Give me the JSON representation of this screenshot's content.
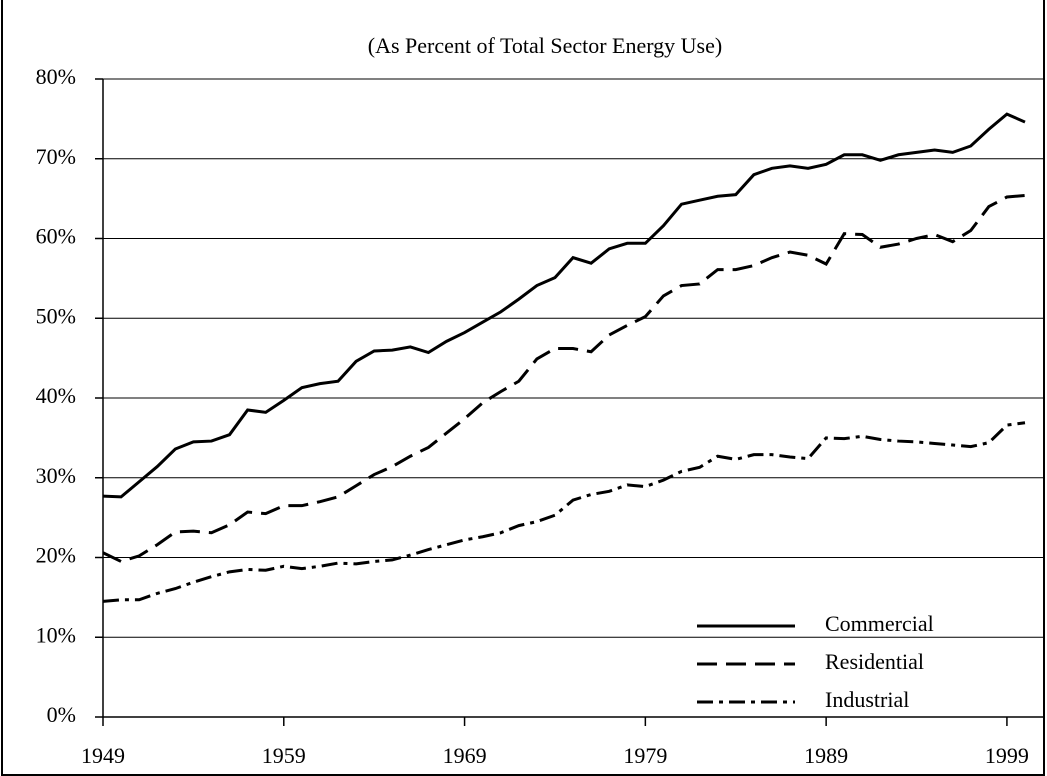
{
  "chart_data": {
    "type": "line",
    "subtitle": "(As Percent of Total Sector Energy Use)",
    "x": [
      1949,
      1950,
      1951,
      1952,
      1953,
      1954,
      1955,
      1956,
      1957,
      1958,
      1959,
      1960,
      1961,
      1962,
      1963,
      1964,
      1965,
      1966,
      1967,
      1968,
      1969,
      1970,
      1971,
      1972,
      1973,
      1974,
      1975,
      1976,
      1977,
      1978,
      1979,
      1980,
      1981,
      1982,
      1983,
      1984,
      1985,
      1986,
      1987,
      1988,
      1989,
      1990,
      1991,
      1992,
      1993,
      1994,
      1995,
      1996,
      1997,
      1998,
      1999,
      2000
    ],
    "series": [
      {
        "name": "Commercial",
        "color": "#000000",
        "dash": "solid",
        "values": [
          27.7,
          27.6,
          29.5,
          31.4,
          33.6,
          34.5,
          34.6,
          35.4,
          38.5,
          38.2,
          39.7,
          41.3,
          41.8,
          42.1,
          44.6,
          45.9,
          46.0,
          46.4,
          45.7,
          47.1,
          48.2,
          49.5,
          50.8,
          52.4,
          54.1,
          55.1,
          57.6,
          56.9,
          58.7,
          59.4,
          59.4,
          61.6,
          64.3,
          64.8,
          65.3,
          65.5,
          68.0,
          68.8,
          69.1,
          68.8,
          69.3,
          70.5,
          70.5,
          69.8,
          70.5,
          70.8,
          71.1,
          70.8,
          71.6,
          73.7,
          75.6,
          74.6
        ]
      },
      {
        "name": "Residential",
        "color": "#000000",
        "dash": "dashed",
        "values": [
          20.6,
          19.5,
          20.2,
          21.6,
          23.2,
          23.3,
          23.1,
          24.1,
          25.7,
          25.5,
          26.5,
          26.5,
          27.0,
          27.6,
          29.0,
          30.4,
          31.4,
          32.7,
          33.8,
          35.6,
          37.4,
          39.4,
          40.8,
          42.1,
          44.9,
          46.2,
          46.2,
          45.8,
          47.9,
          49.1,
          50.2,
          52.8,
          54.1,
          54.3,
          56.1,
          56.1,
          56.6,
          57.6,
          58.3,
          57.9,
          56.8,
          60.6,
          60.5,
          58.9,
          59.3,
          60.0,
          60.5,
          59.6,
          61.0,
          64.0,
          65.2,
          65.4
        ]
      },
      {
        "name": "Industrial",
        "color": "#000000",
        "dash": "dashdot",
        "values": [
          14.5,
          14.7,
          14.7,
          15.5,
          16.1,
          16.9,
          17.6,
          18.2,
          18.5,
          18.4,
          18.9,
          18.6,
          18.9,
          19.3,
          19.2,
          19.5,
          19.7,
          20.3,
          21.0,
          21.6,
          22.2,
          22.6,
          23.1,
          24.0,
          24.5,
          25.3,
          27.2,
          27.9,
          28.3,
          29.1,
          28.9,
          29.7,
          30.8,
          31.3,
          32.7,
          32.3,
          32.9,
          32.9,
          32.6,
          32.4,
          35.0,
          34.9,
          35.2,
          34.8,
          34.6,
          34.5,
          34.3,
          34.1,
          33.9,
          34.4,
          36.6,
          36.9
        ]
      }
    ],
    "xlim": [
      1949,
      2000
    ],
    "xticks": [
      1949,
      1959,
      1969,
      1979,
      1989,
      1999
    ],
    "ylim": [
      0,
      80
    ],
    "yticks": [
      {
        "value": 0,
        "label": "0%"
      },
      {
        "value": 10,
        "label": "10%"
      },
      {
        "value": 20,
        "label": "20%"
      },
      {
        "value": 30,
        "label": "30%"
      },
      {
        "value": 40,
        "label": "40%"
      },
      {
        "value": 50,
        "label": "50%"
      },
      {
        "value": 60,
        "label": "60%"
      },
      {
        "value": 70,
        "label": "70%"
      },
      {
        "value": 80,
        "label": "80%"
      }
    ],
    "grid": true,
    "legend": "lower-right"
  }
}
